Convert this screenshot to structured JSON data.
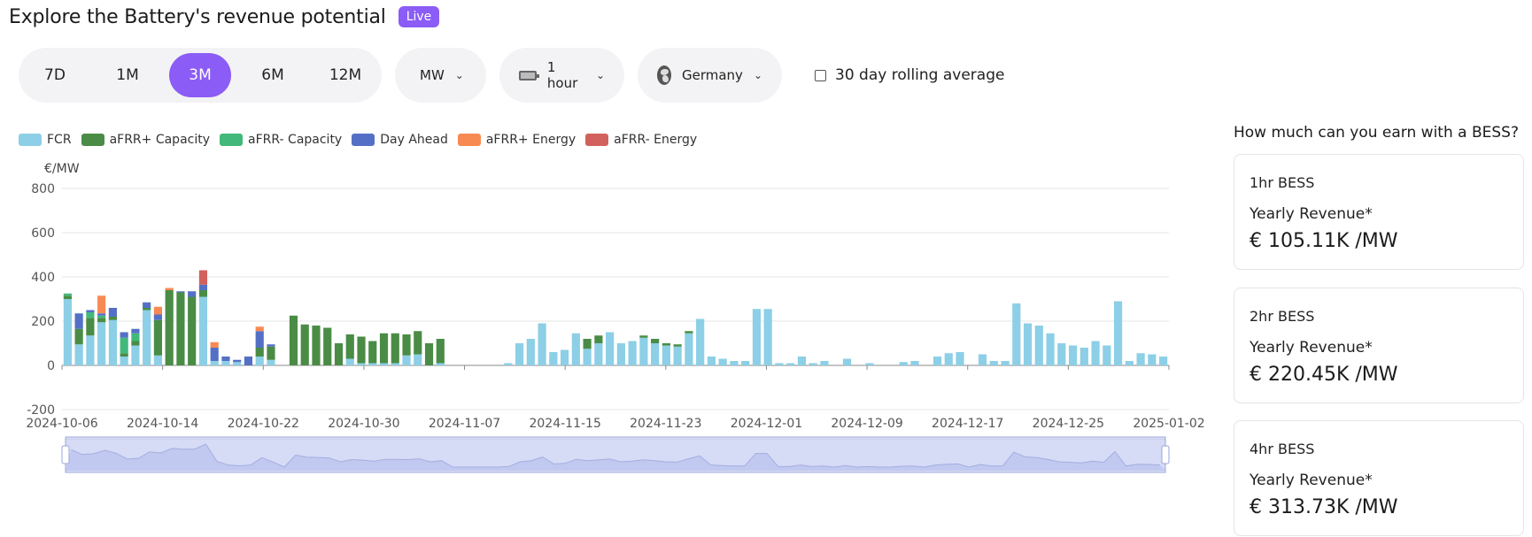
{
  "header": {
    "title": "Explore the Battery's revenue potential",
    "badge": "Live"
  },
  "period": {
    "options": [
      "7D",
      "1M",
      "3M",
      "6M",
      "12M"
    ],
    "selected": "3M"
  },
  "unit_select": {
    "value": "MW"
  },
  "duration_select": {
    "value": "1 hour"
  },
  "country_select": {
    "value": "Germany"
  },
  "rolling_average": {
    "label": "30 day rolling average",
    "checked": false
  },
  "chart_data": {
    "type": "bar",
    "stacked": true,
    "ylabel": "€/MW",
    "ylim": [
      -200,
      800
    ],
    "yticks": [
      -200,
      0,
      200,
      400,
      600,
      800
    ],
    "xticks": [
      "2024-10-06",
      "2024-10-14",
      "2024-10-22",
      "2024-10-30",
      "2024-11-07",
      "2024-11-15",
      "2024-11-23",
      "2024-12-01",
      "2024-12-09",
      "2024-12-17",
      "2024-12-25",
      "2025-01-02"
    ],
    "x_start": "2024-10-06",
    "x_end": "2025-01-02",
    "legend_position": "top-left",
    "grid": true,
    "series": [
      {
        "name": "FCR",
        "color": "#8ccfe6",
        "values": [
          300,
          95,
          135,
          195,
          205,
          40,
          90,
          250,
          45,
          0,
          0,
          0,
          310,
          20,
          20,
          15,
          0,
          40,
          25,
          0,
          0,
          0,
          0,
          0,
          0,
          30,
          10,
          10,
          10,
          10,
          45,
          50,
          0,
          10,
          0,
          0,
          0,
          0,
          0,
          10,
          100,
          120,
          190,
          60,
          70,
          145,
          75,
          100,
          150,
          100,
          110,
          125,
          100,
          90,
          85,
          145,
          210,
          40,
          30,
          20,
          20,
          255,
          255,
          10,
          10,
          40,
          10,
          20,
          0,
          30,
          0,
          10,
          0,
          0,
          15,
          20,
          0,
          40,
          55,
          60,
          0,
          50,
          20,
          20,
          280,
          190,
          180,
          145,
          100,
          90,
          80,
          110,
          90,
          290,
          20,
          55,
          50,
          40
        ]
      },
      {
        "name": "aFRR+ Capacity",
        "color": "#4a8c45",
        "values": [
          15,
          70,
          80,
          20,
          15,
          15,
          20,
          10,
          160,
          340,
          330,
          310,
          30,
          0,
          0,
          0,
          0,
          40,
          60,
          0,
          225,
          185,
          180,
          170,
          100,
          110,
          120,
          100,
          135,
          135,
          95,
          105,
          100,
          110,
          0,
          0,
          0,
          0,
          0,
          0,
          0,
          0,
          0,
          0,
          0,
          0,
          45,
          35,
          0,
          0,
          0,
          10,
          20,
          10,
          10,
          10,
          0,
          0,
          0,
          0,
          0,
          0,
          0,
          0,
          0,
          0,
          0,
          0,
          0,
          0,
          0,
          0,
          0,
          0,
          0,
          0,
          0,
          0,
          0,
          0,
          0,
          0,
          0,
          0,
          0,
          0,
          0,
          0,
          0,
          0,
          0,
          0,
          0,
          0,
          0,
          0,
          0,
          0
        ]
      },
      {
        "name": "aFRR- Capacity",
        "color": "#42b87a",
        "values": [
          10,
          0,
          25,
          10,
          0,
          70,
          35,
          0,
          0,
          0,
          0,
          0,
          0,
          0,
          0,
          0,
          0,
          0,
          0,
          0,
          0,
          0,
          0,
          0,
          0,
          0,
          0,
          0,
          0,
          0,
          0,
          0,
          0,
          0,
          0,
          0,
          0,
          0,
          0,
          0,
          0,
          0,
          0,
          0,
          0,
          0,
          0,
          0,
          0,
          0,
          0,
          0,
          0,
          0,
          0,
          0,
          0,
          0,
          0,
          0,
          0,
          0,
          0,
          0,
          0,
          0,
          0,
          0,
          0,
          0,
          0,
          0,
          0,
          0,
          0,
          0,
          0,
          0,
          0,
          0,
          0,
          0,
          0,
          0,
          0,
          0,
          0,
          0,
          0,
          0,
          0,
          0,
          0,
          0,
          0,
          0,
          0,
          0
        ]
      },
      {
        "name": "Day Ahead",
        "color": "#5470c6",
        "values": [
          0,
          70,
          10,
          10,
          40,
          25,
          20,
          25,
          25,
          0,
          5,
          25,
          25,
          60,
          20,
          10,
          40,
          75,
          10,
          0,
          0,
          0,
          0,
          0,
          0,
          0,
          0,
          0,
          0,
          0,
          0,
          0,
          0,
          0,
          0,
          0,
          0,
          0,
          0,
          0,
          0,
          0,
          0,
          0,
          0,
          0,
          0,
          0,
          0,
          0,
          0,
          0,
          0,
          0,
          0,
          0,
          0,
          0,
          0,
          0,
          0,
          0,
          0,
          0,
          0,
          0,
          0,
          0,
          0,
          0,
          0,
          0,
          0,
          0,
          0,
          0,
          0,
          0,
          0,
          0,
          0,
          0,
          0,
          0,
          0,
          0,
          0,
          0,
          0,
          0,
          0,
          0,
          0,
          0,
          0,
          0,
          0,
          0
        ]
      },
      {
        "name": "aFRR+ Energy",
        "color": "#f78a52",
        "values": [
          0,
          0,
          0,
          80,
          0,
          0,
          0,
          0,
          35,
          10,
          0,
          0,
          0,
          25,
          0,
          0,
          0,
          20,
          0,
          0,
          0,
          0,
          0,
          0,
          0,
          0,
          0,
          0,
          0,
          0,
          0,
          0,
          0,
          0,
          0,
          0,
          0,
          0,
          0,
          0,
          0,
          0,
          0,
          0,
          0,
          0,
          0,
          0,
          0,
          0,
          0,
          0,
          0,
          0,
          0,
          0,
          0,
          0,
          0,
          0,
          0,
          0,
          0,
          0,
          0,
          0,
          0,
          0,
          0,
          0,
          0,
          0,
          0,
          0,
          0,
          0,
          0,
          0,
          0,
          0,
          0,
          0,
          0,
          0,
          0,
          0,
          0,
          0,
          0,
          0,
          0,
          0,
          0,
          0,
          0,
          0,
          0,
          0
        ]
      },
      {
        "name": "aFRR- Energy",
        "color": "#d2615d",
        "values": [
          0,
          0,
          0,
          0,
          0,
          0,
          0,
          0,
          0,
          0,
          0,
          0,
          65,
          0,
          0,
          0,
          0,
          0,
          0,
          0,
          0,
          0,
          0,
          0,
          0,
          0,
          0,
          0,
          0,
          0,
          0,
          0,
          0,
          0,
          0,
          0,
          0,
          0,
          0,
          0,
          0,
          0,
          0,
          0,
          0,
          0,
          0,
          0,
          0,
          0,
          0,
          0,
          0,
          0,
          0,
          0,
          0,
          0,
          0,
          0,
          0,
          0,
          0,
          0,
          0,
          0,
          0,
          0,
          0,
          0,
          0,
          0,
          0,
          0,
          0,
          0,
          0,
          0,
          0,
          0,
          0,
          0,
          0,
          0,
          0,
          0,
          0,
          0,
          0,
          0,
          0,
          0,
          0,
          0,
          0,
          0,
          0,
          0
        ]
      }
    ]
  },
  "sidebar": {
    "title": "How much can you earn with a BESS?",
    "cards": [
      {
        "name": "1hr BESS",
        "label": "Yearly Revenue*",
        "value": "€ 105.11K /MW"
      },
      {
        "name": "2hr BESS",
        "label": "Yearly Revenue*",
        "value": "€ 220.45K /MW"
      },
      {
        "name": "4hr BESS",
        "label": "Yearly Revenue*",
        "value": "€ 313.73K /MW"
      }
    ]
  }
}
